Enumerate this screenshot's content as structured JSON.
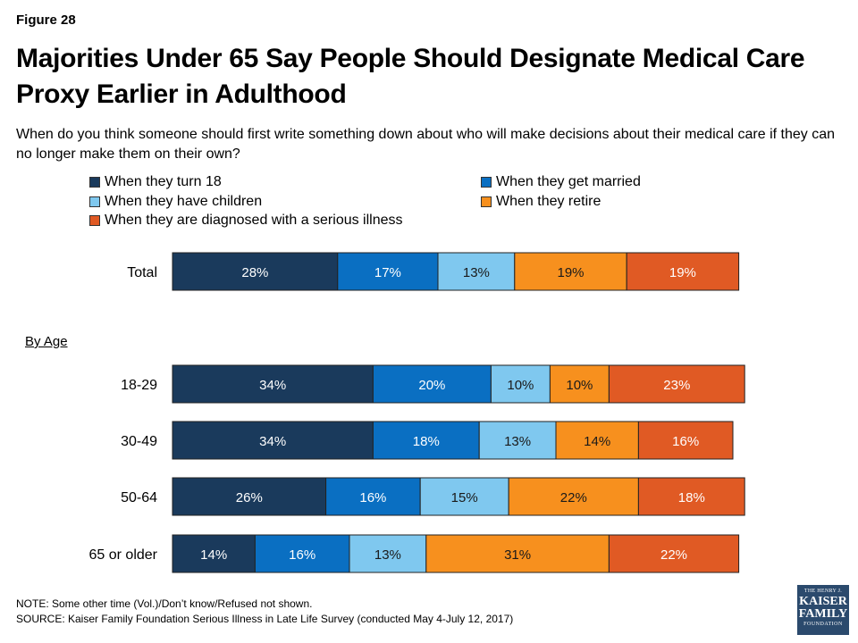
{
  "figure_label": "Figure 28",
  "title": "Majorities Under 65 Say People Should Designate Medical Care Proxy Earlier in Adulthood",
  "subtitle": "When do you think someone should first write something down about who will make decisions about their medical care if they can no longer make them on their own?",
  "section_label": "By Age",
  "notes": {
    "note": "NOTE: Some other time (Vol.)/Don’t know/Refused not shown.",
    "source": "SOURCE: Kaiser Family Foundation Serious Illness in Late Life Survey (conducted May 4-July 12, 2017)"
  },
  "logo": {
    "line1": "THE HENRY J.",
    "line2": "KAISER",
    "line3": "FAMILY",
    "line4": "FOUNDATION"
  },
  "chart_data": {
    "type": "bar",
    "orientation": "horizontal",
    "stacked": true,
    "categories": [
      "Total",
      "18-29",
      "30-49",
      "50-64",
      "65 or older"
    ],
    "series": [
      {
        "name": "When they turn 18",
        "color": "#1a3a5c",
        "values": [
          28,
          34,
          34,
          26,
          14
        ]
      },
      {
        "name": "When they get married",
        "color": "#0a6fc2",
        "values": [
          17,
          20,
          18,
          16,
          16
        ]
      },
      {
        "name": "When they have children",
        "color": "#7fc8ef",
        "values": [
          13,
          10,
          13,
          15,
          13
        ]
      },
      {
        "name": "When they retire",
        "color": "#f7901e",
        "values": [
          19,
          10,
          14,
          22,
          31
        ]
      },
      {
        "name": "When they are diagnosed with a serious illness",
        "color": "#e05a24",
        "values": [
          19,
          23,
          16,
          18,
          22
        ]
      }
    ],
    "value_suffix": "%",
    "legend_position": "top",
    "grid": false
  }
}
